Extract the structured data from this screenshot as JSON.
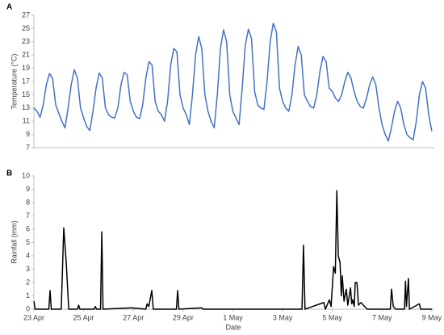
{
  "chart_data": [
    {
      "type": "line",
      "title": "A",
      "ylabel": "Temperature (°C)",
      "color": "#4472c4",
      "xlim": [
        0,
        16.1
      ],
      "ylim": [
        7,
        27
      ],
      "yticks": [
        7,
        9,
        11,
        13,
        15,
        17,
        19,
        21,
        23,
        25,
        27
      ],
      "x": [
        0,
        0.125,
        0.25,
        0.375,
        0.5,
        0.625,
        0.75,
        0.875,
        1,
        1.125,
        1.25,
        1.375,
        1.5,
        1.625,
        1.75,
        1.875,
        2,
        2.125,
        2.25,
        2.375,
        2.5,
        2.625,
        2.75,
        2.875,
        3,
        3.125,
        3.25,
        3.375,
        3.5,
        3.625,
        3.75,
        3.875,
        4,
        4.125,
        4.25,
        4.375,
        4.5,
        4.625,
        4.75,
        4.875,
        5,
        5.125,
        5.25,
        5.375,
        5.5,
        5.625,
        5.75,
        5.875,
        6,
        6.125,
        6.25,
        6.375,
        6.5,
        6.625,
        6.75,
        6.875,
        7,
        7.125,
        7.25,
        7.375,
        7.5,
        7.625,
        7.75,
        7.875,
        8,
        8.125,
        8.25,
        8.375,
        8.5,
        8.625,
        8.75,
        8.875,
        9,
        9.125,
        9.25,
        9.375,
        9.5,
        9.625,
        9.75,
        9.875,
        10,
        10.125,
        10.25,
        10.375,
        10.5,
        10.625,
        10.75,
        10.875,
        11,
        11.125,
        11.25,
        11.375,
        11.5,
        11.625,
        11.75,
        11.875,
        12,
        12.125,
        12.25,
        12.375,
        12.5,
        12.625,
        12.75,
        12.875,
        13,
        13.125,
        13.25,
        13.375,
        13.5,
        13.625,
        13.75,
        13.875,
        14,
        14.125,
        14.25,
        14.375,
        14.5,
        14.625,
        14.75,
        14.875,
        15,
        15.125,
        15.25,
        15.375,
        15.5,
        15.625,
        15.75,
        15.875,
        16
      ],
      "values": [
        13,
        12.5,
        11.6,
        13.5,
        16.5,
        18.2,
        17.5,
        13.5,
        12.2,
        11,
        10,
        13,
        16.5,
        18.8,
        17.5,
        13,
        11.5,
        10.2,
        9.6,
        12.5,
        16,
        18.3,
        17.5,
        13,
        12,
        11.6,
        11.5,
        13,
        16.5,
        18.4,
        18,
        14,
        12.5,
        11.6,
        11.4,
        13.5,
        17.5,
        20,
        19.5,
        14,
        12.5,
        12,
        11,
        14,
        19.5,
        22,
        21.5,
        15,
        13,
        12,
        10.5,
        15,
        21,
        23.8,
        22,
        15,
        12.5,
        11,
        10,
        15,
        22,
        24.8,
        23,
        15,
        12.5,
        11.5,
        10.5,
        16,
        22.5,
        24.9,
        23.5,
        15.5,
        13.5,
        13,
        12.8,
        17,
        23,
        25.8,
        24.5,
        16,
        14,
        13,
        12.5,
        15,
        19.5,
        22.3,
        21,
        15,
        14,
        13.2,
        13,
        15,
        18.5,
        20.8,
        20,
        16,
        15.5,
        14.5,
        14,
        15,
        17,
        18.4,
        17.5,
        15.5,
        14,
        13.2,
        13,
        14.5,
        16.5,
        17.7,
        16.5,
        13,
        10.5,
        9,
        8,
        10,
        12.5,
        14,
        13,
        10.5,
        9,
        8.5,
        8.2,
        11,
        15,
        17,
        16,
        12,
        9.5
      ]
    },
    {
      "type": "line",
      "title": "B",
      "ylabel": "Rainfall (mm)",
      "xlabel": "Date",
      "color": "#000000",
      "xlim": [
        0,
        16.1
      ],
      "ylim": [
        0,
        10
      ],
      "yticks": [
        0,
        1,
        2,
        3,
        4,
        5,
        6,
        7,
        8,
        9,
        10
      ],
      "xticks": [
        {
          "value": 0,
          "label": "23 Apr"
        },
        {
          "value": 2,
          "label": "25 Apr"
        },
        {
          "value": 4,
          "label": "27 Apr"
        },
        {
          "value": 6,
          "label": "29 Apr"
        },
        {
          "value": 8,
          "label": "1 May"
        },
        {
          "value": 10,
          "label": "3 May"
        },
        {
          "value": 12,
          "label": "5 May"
        },
        {
          "value": 14,
          "label": "7 May"
        },
        {
          "value": 16,
          "label": "9 May"
        }
      ],
      "x": [
        0,
        0.05,
        0.6,
        0.65,
        0.7,
        1.1,
        1.2,
        1.3,
        1.4,
        1.75,
        1.8,
        1.85,
        2.42,
        2.47,
        2.52,
        2.68,
        2.73,
        2.78,
        3.93,
        4.5,
        4.55,
        4.62,
        4.74,
        4.8,
        5.73,
        5.78,
        5.83,
        6.75,
        6.8,
        10.78,
        10.84,
        10.9,
        11.66,
        11.72,
        11.88,
        11.95,
        12.05,
        12.12,
        12.18,
        12.24,
        12.31,
        12.36,
        12.4,
        12.47,
        12.56,
        12.62,
        12.73,
        12.78,
        12.82,
        12.88,
        12.92,
        12.99,
        13.05,
        13.15,
        13.3,
        13.4,
        14.33,
        14.38,
        14.45,
        14.55,
        14.9,
        14.94,
        14.98,
        15.06,
        15.1,
        15.5,
        15.55,
        16
      ],
      "values": [
        0.6,
        0,
        0,
        1.4,
        0,
        0,
        6.1,
        3.5,
        0,
        0,
        0.3,
        0,
        0,
        0.2,
        0,
        0,
        5.8,
        0,
        0.1,
        0,
        0.4,
        0.2,
        1.4,
        0,
        0,
        1.4,
        0,
        0.1,
        0,
        0,
        4.8,
        0,
        0.5,
        0,
        0.7,
        0.2,
        3.2,
        2.7,
        8.9,
        4.0,
        3.5,
        1.0,
        2.5,
        0.6,
        1.5,
        0.3,
        1.6,
        0.4,
        0.7,
        0.2,
        2.0,
        2.0,
        0.3,
        0.5,
        0.2,
        0,
        0,
        1.5,
        0.2,
        0,
        0,
        2.1,
        0.2,
        2.3,
        0,
        0.4,
        0,
        0
      ]
    }
  ]
}
